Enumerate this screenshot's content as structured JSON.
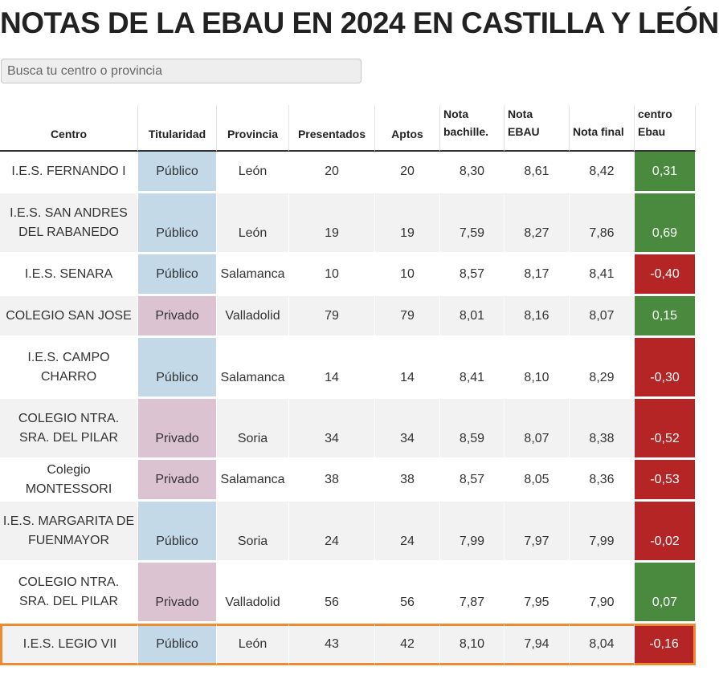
{
  "title": "NOTAS DE LA EBAU EN 2024 EN CASTILLA Y LEÓN",
  "search": {
    "placeholder": "Busca tu centro o provincia"
  },
  "colors": {
    "public": "#c3d9e8",
    "private": "#dbc3d2",
    "positive": "#4a8a3e",
    "negative": "#b52525",
    "highlight": "#f08a30"
  },
  "headers": [
    "Centro",
    "Titularidad",
    "Provincia",
    "Presentados",
    "Aptos",
    "Nota bachille.",
    "Nota EBAU",
    "Nota final",
    "centro Ebau"
  ],
  "rows": [
    {
      "centro": "I.E.S. FERNANDO I",
      "titularidad": "Público",
      "provincia": "León",
      "presentados": "20",
      "aptos": "20",
      "nota_bach": "8,30",
      "nota_ebau": "8,61",
      "nota_final": "8,42",
      "diferencia": "0,31"
    },
    {
      "centro": "I.E.S. SAN ANDRES DEL RABANEDO",
      "titularidad": "Público",
      "provincia": "León",
      "presentados": "19",
      "aptos": "19",
      "nota_bach": "7,59",
      "nota_ebau": "8,27",
      "nota_final": "7,86",
      "diferencia": "0,69"
    },
    {
      "centro": "I.E.S. SENARA",
      "titularidad": "Público",
      "provincia": "Salamanca",
      "presentados": "10",
      "aptos": "10",
      "nota_bach": "8,57",
      "nota_ebau": "8,17",
      "nota_final": "8,41",
      "diferencia": "-0,40"
    },
    {
      "centro": "COLEGIO SAN JOSE",
      "titularidad": "Privado",
      "provincia": "Valladolid",
      "presentados": "79",
      "aptos": "79",
      "nota_bach": "8,01",
      "nota_ebau": "8,16",
      "nota_final": "8,07",
      "diferencia": "0,15"
    },
    {
      "centro": "I.E.S. CAMPO CHARRO",
      "titularidad": "Público",
      "provincia": "Salamanca",
      "presentados": "14",
      "aptos": "14",
      "nota_bach": "8,41",
      "nota_ebau": "8,10",
      "nota_final": "8,29",
      "diferencia": "-0,30"
    },
    {
      "centro": "COLEGIO NTRA. SRA. DEL PILAR",
      "titularidad": "Privado",
      "provincia": "Soria",
      "presentados": "34",
      "aptos": "34",
      "nota_bach": "8,59",
      "nota_ebau": "8,07",
      "nota_final": "8,38",
      "diferencia": "-0,52"
    },
    {
      "centro": "Colegio MONTESSORI",
      "titularidad": "Privado",
      "provincia": "Salamanca",
      "presentados": "38",
      "aptos": "38",
      "nota_bach": "8,57",
      "nota_ebau": "8,05",
      "nota_final": "8,36",
      "diferencia": "-0,53"
    },
    {
      "centro": "I.E.S. MARGARITA DE FUENMAYOR",
      "titularidad": "Público",
      "provincia": "Soria",
      "presentados": "24",
      "aptos": "24",
      "nota_bach": "7,99",
      "nota_ebau": "7,97",
      "nota_final": "7,99",
      "diferencia": "-0,02"
    },
    {
      "centro": "COLEGIO NTRA. SRA. DEL PILAR",
      "titularidad": "Privado",
      "provincia": "Valladolid",
      "presentados": "56",
      "aptos": "56",
      "nota_bach": "7,87",
      "nota_ebau": "7,95",
      "nota_final": "7,90",
      "diferencia": "0,07"
    },
    {
      "centro": "I.E.S. LEGIO VII",
      "titularidad": "Público",
      "provincia": "León",
      "presentados": "43",
      "aptos": "42",
      "nota_bach": "8,10",
      "nota_ebau": "7,94",
      "nota_final": "8,04",
      "diferencia": "-0,16"
    }
  ]
}
